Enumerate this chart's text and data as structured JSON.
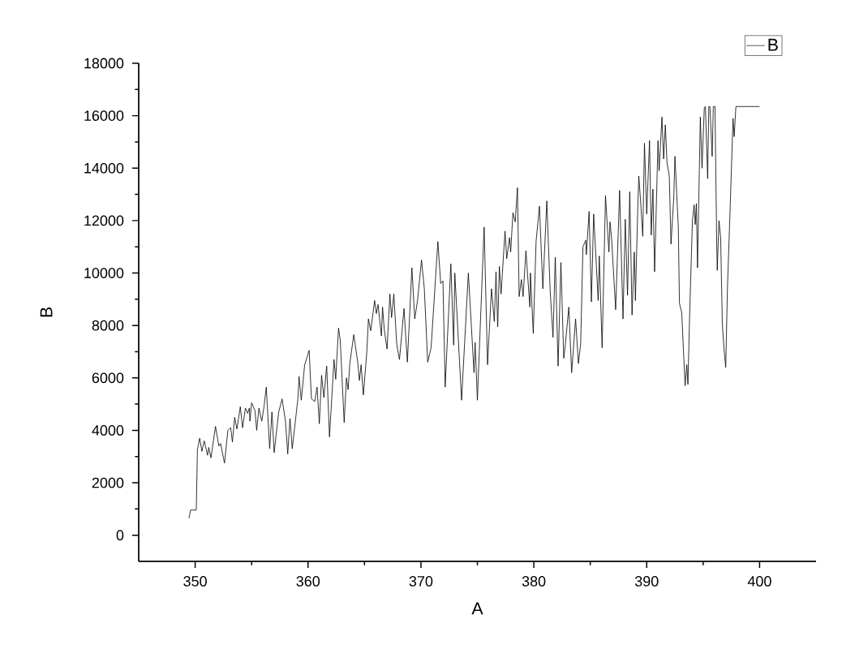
{
  "chart_data": {
    "type": "line",
    "xlabel": "A",
    "ylabel": "B",
    "legend": "top right",
    "marker": "none",
    "line_style": "solid",
    "xlim": [
      345,
      405
    ],
    "xticks": [
      350,
      360,
      370,
      380,
      390,
      400
    ],
    "ylim": [
      -1000,
      18000
    ],
    "yticks": [
      0,
      2000,
      4000,
      6000,
      8000,
      10000,
      12000,
      14000,
      16000,
      18000
    ],
    "series": [
      {
        "name": "B",
        "color": "#000000",
        "x": [
          349.45,
          349.6,
          350.1,
          350.2,
          350.4,
          350.6,
          350.8,
          351.1,
          351.2,
          351.4,
          351.8,
          352.1,
          352.25,
          352.6,
          352.9,
          353.15,
          353.3,
          353.5,
          353.7,
          354.0,
          354.2,
          354.45,
          354.65,
          354.8,
          354.85,
          355.0,
          355.3,
          355.45,
          355.65,
          355.9,
          356.1,
          356.3,
          356.6,
          356.8,
          357.0,
          357.4,
          357.7,
          358.0,
          358.2,
          358.4,
          358.6,
          359.1,
          359.2,
          359.4,
          359.7,
          360.1,
          360.3,
          360.6,
          360.8,
          361.0,
          361.2,
          361.4,
          361.65,
          361.9,
          362.3,
          362.45,
          362.7,
          362.85,
          363.2,
          363.4,
          363.55,
          363.7,
          364.05,
          364.4,
          364.55,
          364.7,
          364.9,
          365.2,
          365.35,
          365.55,
          365.9,
          366.05,
          366.2,
          366.5,
          366.6,
          366.75,
          367.0,
          367.25,
          367.4,
          367.6,
          367.85,
          368.1,
          368.5,
          368.8,
          369.2,
          369.45,
          369.7,
          370.05,
          370.3,
          370.6,
          370.9,
          371.5,
          371.75,
          371.95,
          372.15,
          372.65,
          372.9,
          373.0,
          373.6,
          374.2,
          374.7,
          374.8,
          375.0,
          375.6,
          375.9,
          376.25,
          376.5,
          376.65,
          376.8,
          376.95,
          377.1,
          377.45,
          377.6,
          377.85,
          377.95,
          378.15,
          378.35,
          378.55,
          378.7,
          378.9,
          379.05,
          379.3,
          379.65,
          379.7,
          379.95,
          380.2,
          380.5,
          380.8,
          381.15,
          381.45,
          381.7,
          381.9,
          382.15,
          382.4,
          382.65,
          382.8,
          383.1,
          383.35,
          383.7,
          383.95,
          384.15,
          384.35,
          384.6,
          384.65,
          384.9,
          385.1,
          385.3,
          385.7,
          385.8,
          386.05,
          386.35,
          386.65,
          386.75,
          386.9,
          387.25,
          387.6,
          387.9,
          388.1,
          388.3,
          388.5,
          388.7,
          388.9,
          389.0,
          389.2,
          389.3,
          389.45,
          389.65,
          389.8,
          390.0,
          390.25,
          390.4,
          390.55,
          390.7,
          391.0,
          391.1,
          391.35,
          391.5,
          391.65,
          391.8,
          392.0,
          392.15,
          392.4,
          392.5,
          392.8,
          392.9,
          393.1,
          393.4,
          393.55,
          393.65,
          393.8,
          394.05,
          394.2,
          394.3,
          394.4,
          394.5,
          394.75,
          394.9,
          395.1,
          395.2,
          395.4,
          395.5,
          395.6,
          395.8,
          395.9,
          396.05,
          396.2,
          396.25,
          396.4,
          396.55,
          396.7,
          396.85,
          397.0,
          397.15,
          397.4,
          397.65,
          397.75,
          397.9,
          400.0
        ],
        "values": [
          650,
          960,
          960,
          3250,
          3700,
          3200,
          3600,
          3050,
          3350,
          2950,
          4150,
          3400,
          3500,
          2750,
          4000,
          4100,
          3550,
          4500,
          4050,
          4900,
          4100,
          4850,
          4650,
          4850,
          4350,
          5050,
          4750,
          4000,
          4850,
          4350,
          4900,
          5650,
          3300,
          4700,
          3150,
          4700,
          5200,
          4350,
          3100,
          4450,
          3300,
          5200,
          6050,
          5150,
          6500,
          7050,
          5200,
          5100,
          5650,
          4250,
          6100,
          5250,
          6450,
          3750,
          6700,
          5950,
          7900,
          7450,
          4300,
          6000,
          5550,
          6550,
          7650,
          6600,
          5900,
          6500,
          5350,
          6950,
          8250,
          7800,
          8950,
          8450,
          8800,
          7600,
          8700,
          7850,
          7100,
          9200,
          8300,
          9200,
          7300,
          6700,
          8650,
          6600,
          10200,
          8250,
          8950,
          10500,
          9400,
          6600,
          7150,
          11200,
          9600,
          9700,
          5650,
          10350,
          7250,
          10000,
          5150,
          10000,
          6200,
          7350,
          5150,
          11750,
          6500,
          9400,
          8150,
          10050,
          7950,
          10250,
          9200,
          11600,
          10550,
          11350,
          10800,
          12300,
          11950,
          13250,
          9100,
          9750,
          9100,
          10850,
          8700,
          10000,
          7700,
          11200,
          12550,
          9400,
          12750,
          9300,
          7550,
          10600,
          6450,
          10400,
          6750,
          7300,
          8700,
          6200,
          8250,
          6550,
          7300,
          11000,
          11250,
          10700,
          12350,
          8900,
          12250,
          8950,
          10650,
          7150,
          12950,
          10800,
          11950,
          11250,
          8600,
          13150,
          8250,
          12050,
          9150,
          13100,
          8400,
          10800,
          8950,
          12350,
          13700,
          12800,
          11400,
          14950,
          12250,
          15050,
          11450,
          13200,
          10050,
          15050,
          13900,
          15950,
          14350,
          15650,
          14200,
          13700,
          11100,
          12900,
          14450,
          11750,
          8850,
          8500,
          5700,
          6500,
          5750,
          8350,
          12000,
          12600,
          11850,
          12650,
          10200,
          15950,
          14000,
          16300,
          16350,
          13600,
          16350,
          16350,
          14450,
          16350,
          16350,
          11150,
          10100,
          12000,
          11350,
          8050,
          7100,
          6400,
          9400,
          12600,
          15900,
          15200,
          16350,
          16350
        ]
      }
    ]
  }
}
